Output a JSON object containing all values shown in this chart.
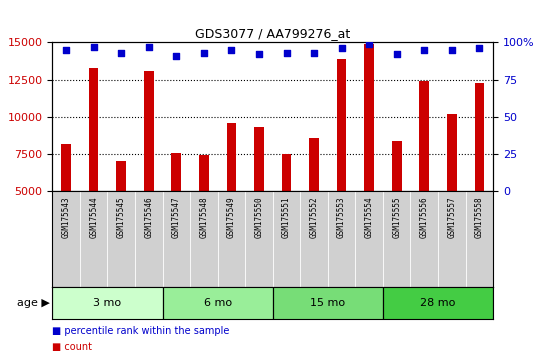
{
  "title": "GDS3077 / AA799276_at",
  "samples": [
    "GSM175543",
    "GSM175544",
    "GSM175545",
    "GSM175546",
    "GSM175547",
    "GSM175548",
    "GSM175549",
    "GSM175550",
    "GSM175551",
    "GSM175552",
    "GSM175553",
    "GSM175554",
    "GSM175555",
    "GSM175556",
    "GSM175557",
    "GSM175558"
  ],
  "counts": [
    8200,
    13300,
    7000,
    13100,
    7600,
    7400,
    9600,
    9300,
    7500,
    8600,
    13900,
    14900,
    8400,
    12400,
    10200,
    12300
  ],
  "percentile_ranks": [
    95,
    97,
    93,
    97,
    91,
    93,
    95,
    92,
    93,
    93,
    96,
    99,
    92,
    95,
    95,
    96
  ],
  "bar_color": "#CC0000",
  "dot_color": "#0000CC",
  "ylim_left": [
    5000,
    15000
  ],
  "ylim_right": [
    0,
    100
  ],
  "yticks_left": [
    5000,
    7500,
    10000,
    12500,
    15000
  ],
  "yticks_right": [
    0,
    25,
    50,
    75,
    100
  ],
  "gridlines_at": [
    7500,
    10000,
    12500
  ],
  "groups": [
    {
      "label": "3 mo",
      "start": 0,
      "end": 3,
      "color": "#ccffcc"
    },
    {
      "label": "6 mo",
      "start": 4,
      "end": 7,
      "color": "#99ee99"
    },
    {
      "label": "15 mo",
      "start": 8,
      "end": 11,
      "color": "#77dd77"
    },
    {
      "label": "28 mo",
      "start": 12,
      "end": 15,
      "color": "#44cc44"
    }
  ],
  "age_label": "age",
  "legend_count_label": "count",
  "legend_pct_label": "percentile rank within the sample",
  "sample_label_bg": "#d0d0d0",
  "plot_bg": "#ffffff",
  "bar_width": 0.35,
  "dot_size": 18
}
